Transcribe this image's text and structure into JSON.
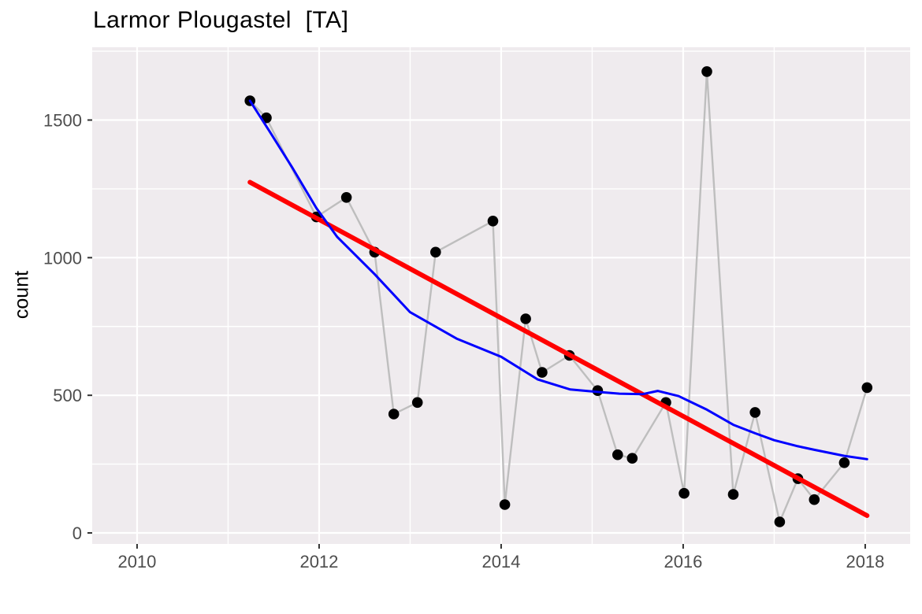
{
  "chart_data": {
    "type": "scatter",
    "title": "Larmor Plougastel  [TA]",
    "xlabel": "",
    "ylabel": "count",
    "legend_position": "none",
    "grid": true,
    "panel_bg": "#EFEBEE",
    "grid_color": "#FFFFFF",
    "tick_label_color": "#4D4D4D",
    "tick_mark_color": "#333333",
    "xlim": [
      2009.507,
      2018.494
    ],
    "ylim": [
      -40,
      1764.5
    ],
    "x_ticks": [
      2010,
      2012,
      2014,
      2016,
      2018
    ],
    "x_minor_ticks": [
      2011,
      2013,
      2015,
      2017
    ],
    "y_ticks": [
      0,
      500,
      1000,
      1500
    ],
    "y_minor_ticks": [
      250,
      750,
      1250,
      1750
    ],
    "points": [
      [
        2011.24,
        1570
      ],
      [
        2011.42,
        1508
      ],
      [
        2011.97,
        1148
      ],
      [
        2012.3,
        1219
      ],
      [
        2012.61,
        1020
      ],
      [
        2012.82,
        432
      ],
      [
        2013.08,
        474
      ],
      [
        2013.28,
        1020
      ],
      [
        2013.91,
        1133
      ],
      [
        2014.04,
        103
      ],
      [
        2014.27,
        778
      ],
      [
        2014.45,
        583
      ],
      [
        2014.75,
        645
      ],
      [
        2015.06,
        517
      ],
      [
        2015.28,
        284
      ],
      [
        2015.44,
        271
      ],
      [
        2015.81,
        474
      ],
      [
        2016.01,
        144
      ],
      [
        2016.26,
        1676
      ],
      [
        2016.55,
        140
      ],
      [
        2016.79,
        438
      ],
      [
        2017.06,
        40
      ],
      [
        2017.26,
        197
      ],
      [
        2017.44,
        121
      ],
      [
        2017.77,
        255
      ],
      [
        2018.02,
        528
      ]
    ],
    "point_style": {
      "color": "#000000",
      "radius": 6.8
    },
    "connect_line_style": {
      "color": "#BEBEBE",
      "width": 2.4
    },
    "trend_linear": {
      "name": "linear-trend",
      "color": "#FF0000",
      "width": 6,
      "points": [
        [
          2011.24,
          1274
        ],
        [
          2018.02,
          63
        ]
      ]
    },
    "smooth_loess": {
      "name": "loess-smooth",
      "color": "#0000FF",
      "width": 3,
      "points": [
        [
          2011.24,
          1570
        ],
        [
          2011.45,
          1462
        ],
        [
          2011.7,
          1330
        ],
        [
          2011.97,
          1180
        ],
        [
          2012.2,
          1075
        ],
        [
          2012.61,
          940
        ],
        [
          2013.0,
          802
        ],
        [
          2013.51,
          706
        ],
        [
          2014.0,
          640
        ],
        [
          2014.4,
          558
        ],
        [
          2014.76,
          521
        ],
        [
          2015.0,
          514
        ],
        [
          2015.3,
          506
        ],
        [
          2015.55,
          504
        ],
        [
          2015.72,
          516
        ],
        [
          2015.95,
          497
        ],
        [
          2016.26,
          448
        ],
        [
          2016.55,
          393
        ],
        [
          2016.79,
          362
        ],
        [
          2017.0,
          337
        ],
        [
          2017.26,
          315
        ],
        [
          2017.44,
          302
        ],
        [
          2017.77,
          280
        ],
        [
          2018.02,
          268
        ]
      ]
    }
  }
}
